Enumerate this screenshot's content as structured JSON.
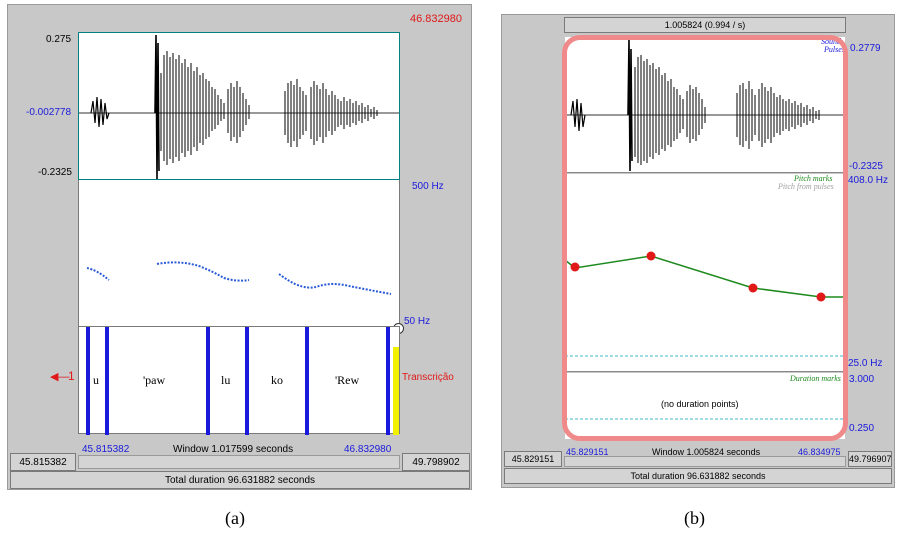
{
  "panel_a": {
    "cursor_time": "46.832980",
    "amp_max": "0.275",
    "amp_mid": "-0.002778",
    "amp_min": "-0.2325",
    "pitch_top": "500 Hz",
    "pitch_bottom": "50 Hz",
    "tier_number": "1",
    "tier_name": "Transcrição",
    "intervals": [
      "u",
      "'paw",
      "lu",
      "ko",
      "'Rew"
    ],
    "sel_start": "45.815382",
    "sel_end": "46.832980",
    "window_label": "Window 1.017599 seconds",
    "left_time": "45.815382",
    "right_time": "49.798902",
    "total": "Total duration 96.631882 seconds",
    "caption": "(a)"
  },
  "panel_b": {
    "top_label": "1.005824 (0.994 / s)",
    "amp_max": "0.2779",
    "amp_min": "-0.2325",
    "sound_label": "Sound",
    "pulses_label": "Pulses",
    "pitch_mark_label": "Pitch marks",
    "pitch_pulse_label": "Pitch from pulses",
    "pitch_top": "408.0 Hz",
    "pitch_bottom": "25.0 Hz",
    "duration_mark_label": "Duration marks",
    "dur_top": "3.000",
    "dur_bottom": "0.250",
    "no_duration": "(no duration points)",
    "sel_start": "45.829151",
    "sel_end": "46.834975",
    "window_label": "Window 1.005824 seconds",
    "left_time": "45.829151",
    "right_time": "49.796907",
    "total": "Total duration 96.631882 seconds",
    "caption": "(b)"
  },
  "colors": {
    "accent_blue": "#1a1adc",
    "accent_red": "#e01818",
    "pitch_green": "#1e8a1e",
    "highlight_pink": "#f08a8a"
  }
}
